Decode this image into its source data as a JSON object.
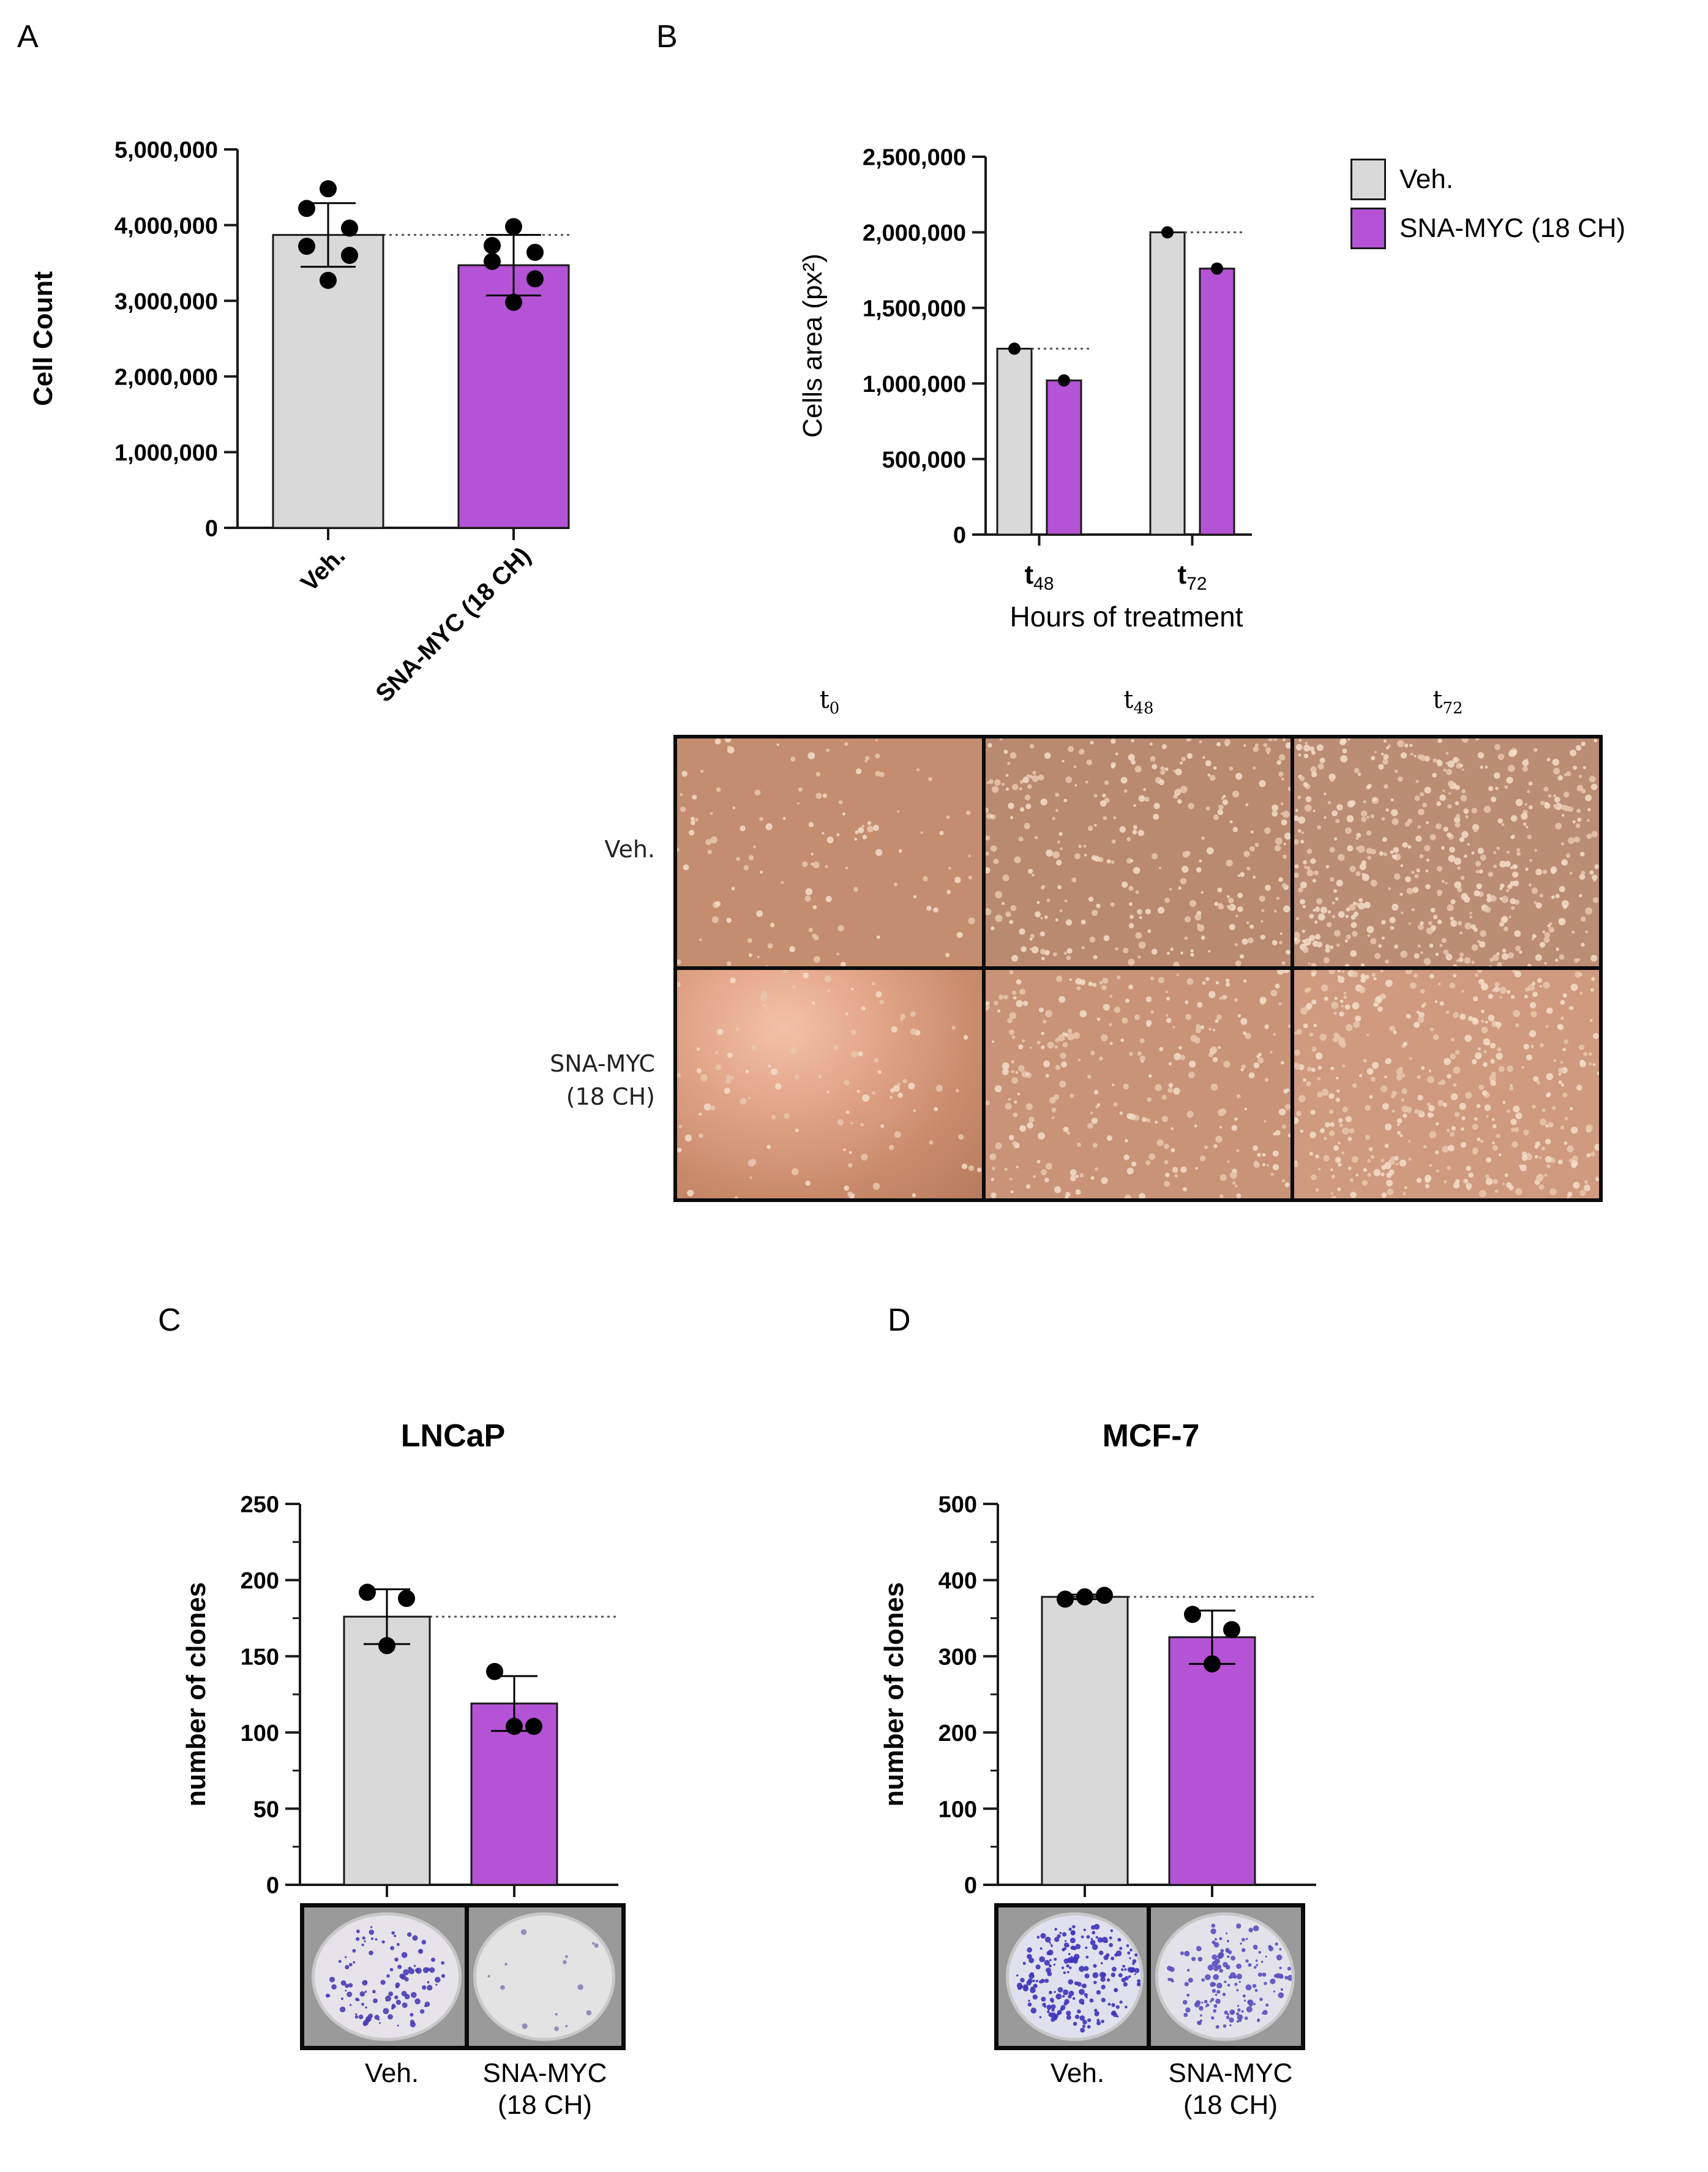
{
  "panels": {
    "a": "A",
    "b": "B",
    "c": "C",
    "d": "D"
  },
  "colors": {
    "veh": "#d9d9d9",
    "myc": "#b553d6",
    "axis": "#1a1a1a",
    "marker": "#000000"
  },
  "chart_data": [
    {
      "id": "A",
      "type": "bar",
      "categories": [
        "Veh.",
        "SNA-MYC (18 CH)"
      ],
      "values": [
        3870000,
        3470000
      ],
      "errors": [
        420000,
        400000
      ],
      "points": [
        [
          4480000,
          4220000,
          3960000,
          3720000,
          3600000,
          3270000
        ],
        [
          3980000,
          3730000,
          3640000,
          3520000,
          3290000,
          2980000
        ]
      ],
      "ylabel": "Cell Count",
      "ylim": [
        0,
        5000000
      ],
      "yticks": [
        "0",
        "1,000,000",
        "2,000,000",
        "3,000,000",
        "4,000,000",
        "5,000,000"
      ],
      "reference_line": 3870000,
      "colors": [
        "#d9d9d9",
        "#b553d6"
      ]
    },
    {
      "id": "B",
      "type": "bar",
      "categories": [
        "t48",
        "t72"
      ],
      "category_labels": [
        {
          "base": "t",
          "sub": "48"
        },
        {
          "base": "t",
          "sub": "72"
        }
      ],
      "series": [
        {
          "name": "Veh.",
          "values": [
            1230000,
            2000000
          ]
        },
        {
          "name": "SNA-MYC (18 CH)",
          "values": [
            1020000,
            1760000
          ]
        }
      ],
      "xlabel": "Hours of treatment",
      "ylabel": "Cells area (px²)",
      "ylim": [
        0,
        2500000
      ],
      "yticks": [
        "0",
        "500,000",
        "1,000,000",
        "1,500,000",
        "2,000,000",
        "2,500,000"
      ],
      "legend_position": "top-right",
      "colors": [
        "#d9d9d9",
        "#b553d6"
      ]
    },
    {
      "id": "C",
      "type": "bar",
      "title": "LNCaP",
      "categories": [
        "Veh.",
        "SNA-MYC (18 CH)"
      ],
      "category_labels": [
        "Veh.",
        "SNA-MYC\n(18 CH)"
      ],
      "values": [
        176,
        119
      ],
      "errors": [
        18,
        18
      ],
      "points": [
        [
          192,
          188,
          157
        ],
        [
          140,
          104,
          104
        ]
      ],
      "ylabel": "number of clones",
      "ylim": [
        0,
        250
      ],
      "yticks": [
        "0",
        "50",
        "100",
        "150",
        "200",
        "250"
      ],
      "reference_line": 176,
      "colors": [
        "#d9d9d9",
        "#b553d6"
      ]
    },
    {
      "id": "D",
      "type": "bar",
      "title": "MCF-7",
      "categories": [
        "Veh.",
        "SNA-MYC (18 CH)"
      ],
      "category_labels": [
        "Veh.",
        "SNA-MYC\n(18 CH)"
      ],
      "values": [
        378,
        325
      ],
      "errors": [
        3,
        35
      ],
      "points": [
        [
          375,
          380,
          378
        ],
        [
          355,
          335,
          290
        ]
      ],
      "ylabel": "number of clones",
      "ylim": [
        0,
        500
      ],
      "yticks": [
        "0",
        "100",
        "200",
        "300",
        "400",
        "500"
      ],
      "reference_line": 378,
      "colors": [
        "#d9d9d9",
        "#b553d6"
      ]
    }
  ],
  "legend": {
    "items": [
      {
        "label": "Veh.",
        "color": "#d9d9d9"
      },
      {
        "label": "SNA-MYC (18 CH)",
        "color": "#b553d6"
      }
    ]
  },
  "micrographs": {
    "columns": [
      {
        "base": "t",
        "sub": "0"
      },
      {
        "base": "t",
        "sub": "48"
      },
      {
        "base": "t",
        "sub": "72"
      }
    ],
    "rows": [
      {
        "line1": "Veh.",
        "line2": ""
      },
      {
        "line1": "SNA-MYC",
        "line2": "(18 CH)"
      }
    ]
  },
  "dishes": {
    "C": {
      "labels": [
        "Veh.",
        "SNA-MYC",
        "(18 CH)"
      ]
    },
    "D": {
      "labels": [
        "Veh.",
        "SNA-MYC",
        "(18 CH)"
      ]
    }
  }
}
